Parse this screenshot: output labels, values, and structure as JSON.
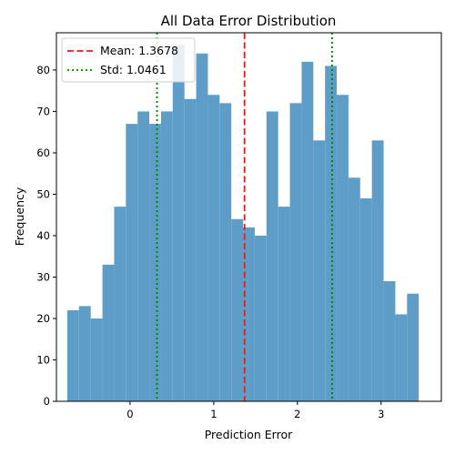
{
  "chart_data": {
    "type": "bar",
    "title": "All Data Error Distribution",
    "xlabel": "Prediction Error",
    "ylabel": "Frequency",
    "xlim": [
      -0.88,
      3.72
    ],
    "ylim": [
      0,
      89
    ],
    "xticks": [
      0,
      1,
      2,
      3
    ],
    "yticks": [
      0,
      10,
      20,
      30,
      40,
      50,
      60,
      70,
      80
    ],
    "bin_start": -0.75,
    "bin_width": 0.14,
    "values": [
      22,
      23,
      20,
      33,
      47,
      67,
      70,
      67,
      70,
      86,
      73,
      84,
      74,
      72,
      44,
      42,
      40,
      70,
      47,
      72,
      82,
      63,
      81,
      74,
      54,
      49,
      63,
      29,
      21,
      26
    ],
    "bar_color": "#5f9dc9",
    "mean": {
      "value": 1.3678,
      "label": "Mean: 1.3678",
      "color": "#e41a1c",
      "style": "dashed"
    },
    "std": {
      "lines": [
        0.3217,
        2.4139
      ],
      "label": "Std: 1.0461",
      "color": "#008000",
      "style": "dotted"
    },
    "legend": {
      "placement": "top-left"
    },
    "grid": false
  }
}
